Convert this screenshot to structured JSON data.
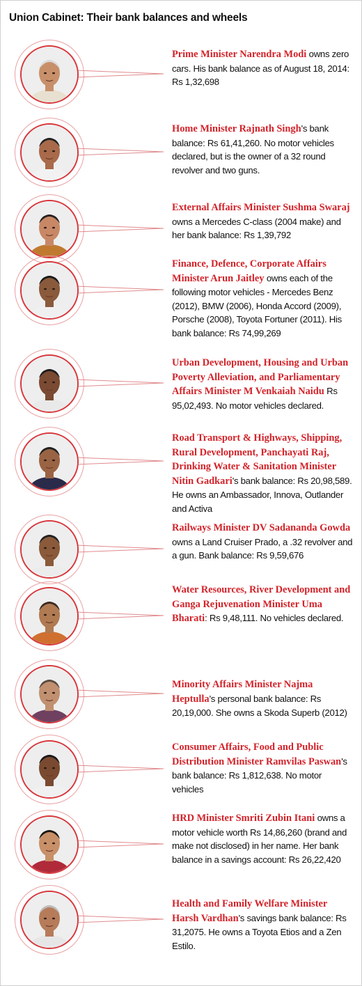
{
  "title": "Union Cabinet: Their bank balances and wheels",
  "colors": {
    "accent": "#d2232a",
    "circle_border": "#d7373c"
  },
  "entries": [
    {
      "name": "Prime Minister Narendra Modi",
      "text": " owns zero cars. His bank balance as of August 18, 2014: Rs 1,32,698",
      "photo": "portrait-narendra-modi"
    },
    {
      "name": "Home Minister Rajnath Singh",
      "text": "'s bank balance: Rs 61,41,260. No motor vehicles declared, but is the owner of a 32 round revolver and two guns.",
      "photo": "portrait-rajnath-singh"
    },
    {
      "name": "External Affairs Minister Sushma Swaraj",
      "text": " owns a Mercedes C-class (2004 make) and her bank balance: Rs 1,39,792",
      "photo": "portrait-sushma-swaraj"
    },
    {
      "name": "Finance, Defence, Corporate Affairs Minister Arun Jaitley",
      "text": " owns each of the following motor vehicles - Mercedes Benz (2012), BMW (2006), Honda Accord (2009), Porsche (2008), Toyota Fortuner (2011). His bank balance: Rs 74,99,269",
      "photo": "portrait-arun-jaitley"
    },
    {
      "name": "Urban Development, Housing and Urban Poverty Alleviation, and Parliamentary Affairs Minister M Venkaiah Naidu",
      "text": " Rs 95,02,493. No motor vehicles declared.",
      "photo": "portrait-venkaiah-naidu"
    },
    {
      "name": "Road Transport & Highways, Shipping, Rural Development, Panchayati Raj, Drinking Water & Sanitation Minister Nitin Gadkari",
      "text": "'s bank balance: Rs 20,98,589. He owns an Ambassador, Innova, Outlander and Activa",
      "photo": "portrait-nitin-gadkari"
    },
    {
      "name": "Railways Minister DV Sadananda Gowda",
      "text": " owns a Land Cruiser Prado, a .32 revolver and a gun. Bank balance: Rs 9,59,676",
      "photo": "portrait-sadananda-gowda"
    },
    {
      "name": "Water Resources, River Development and Ganga Rejuvenation Minister Uma Bharati",
      "text": ": Rs 9,48,111. No vehicles declared.",
      "photo": "portrait-uma-bharati"
    },
    {
      "name": "Minority Affairs Minister Najma Heptulla",
      "text": "'s personal bank balance: Rs 20,19,000. She owns a Skoda Superb (2012)",
      "photo": "portrait-najma-heptulla"
    },
    {
      "name": "Consumer Affairs, Food and Public Distribution Minister Ramvilas Paswan",
      "text": "'s bank balance: Rs 1,812,638. No motor vehicles",
      "photo": "portrait-ramvilas-paswan"
    },
    {
      "name": "HRD Minister Smriti Zubin Itani",
      "text": " owns a motor vehicle worth Rs 14,86,260 (brand and make not disclosed) in her name. Her bank balance in a savings account: Rs 26,22,420",
      "photo": "portrait-smriti-irani"
    },
    {
      "name": "Health and Family Welfare Minister Harsh Vardhan",
      "text": "'s savings bank balance: Rs 31,2075. He owns a Toyota Etios and a Zen Estilo.",
      "photo": "portrait-harsh-vardhan"
    }
  ]
}
